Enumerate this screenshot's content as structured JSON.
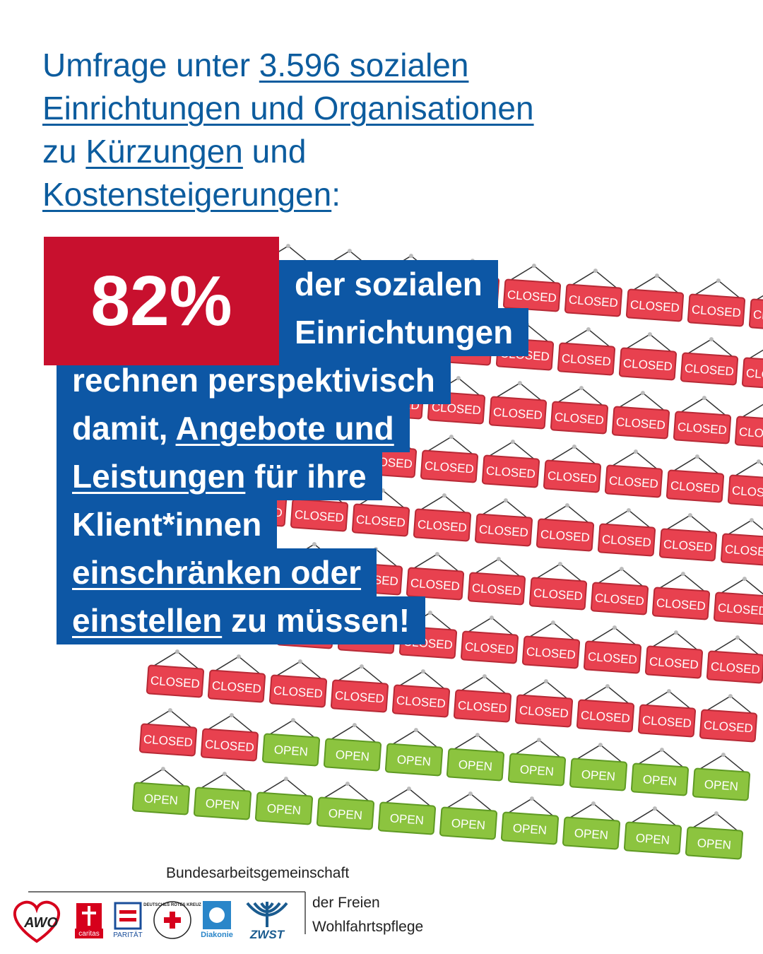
{
  "intro": [
    {
      "text": "Umfrage unter ",
      "underline": false
    },
    {
      "text": "3.596 sozialen Einrichtungen und Organisationen",
      "underline": true
    },
    {
      "text": " zu ",
      "underline": false
    },
    {
      "text": "Kürzungen",
      "underline": true
    },
    {
      "text": " und ",
      "underline": false
    },
    {
      "text": "Kostensteigerungen",
      "underline": true
    },
    {
      "text": ":",
      "underline": false
    }
  ],
  "headline": {
    "value": 82,
    "label": "82%"
  },
  "statement_lines": [
    [
      {
        "text": "der sozialen",
        "underline": false
      }
    ],
    [
      {
        "text": "Einrichtungen",
        "underline": false
      }
    ],
    [
      {
        "text": "rechnen perspektivisch",
        "underline": false
      }
    ],
    [
      {
        "text": "damit, ",
        "underline": false
      },
      {
        "text": "Angebote und",
        "underline": true
      }
    ],
    [
      {
        "text": "Leistungen",
        "underline": true
      },
      {
        "text": " für ihre",
        "underline": false
      }
    ],
    [
      {
        "text": "Klient*innen",
        "underline": false
      }
    ],
    [
      {
        "text": "einschränken oder",
        "underline": true
      }
    ],
    [
      {
        "text": "einstellen",
        "underline": true
      },
      {
        "text": " zu müssen!",
        "underline": false
      }
    ]
  ],
  "sign_labels": {
    "closed": "CLOSED",
    "open": "OPEN"
  },
  "footer": {
    "org_line_1": "Bundesarbeitsgemeinschaft",
    "org_line_2": "der Freien",
    "org_line_3": "Wohlfahrtspflege",
    "logos": [
      "AWO",
      "caritas",
      "PARITÄT",
      "DEUTSCHES ROTES KREUZ",
      "Diakonie",
      "ZWST"
    ]
  }
}
